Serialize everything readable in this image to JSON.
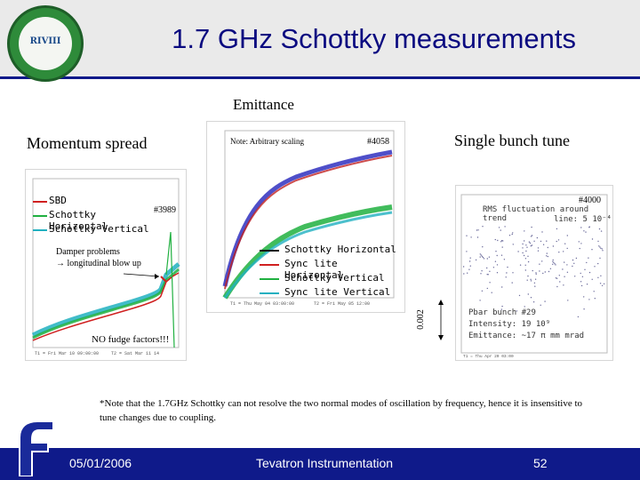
{
  "slide": {
    "title": "1.7 GHz Schottky measurements",
    "logo_text": "RIVIII"
  },
  "labels": {
    "emittance": "Emittance",
    "momentum_spread": "Momentum spread",
    "single_bunch_tune": "Single bunch tune",
    "note_arbitrary": "Note: Arbitrary scaling",
    "store_4058": "#4058",
    "store_3989": "#3989",
    "store_4000": "#4000",
    "rms_line1": "RMS fluctuation around trend",
    "rms_line2": "line: 5 10⁻⁴",
    "damper_line1": "Damper problems",
    "damper_line2": "→ longitudinal blow up",
    "no_fudge": "NO fudge factors!!!",
    "scale_bar": "0.002",
    "pbar_line1": "Pbar bunch #29",
    "pbar_line2": "Intensity: 19 10⁹",
    "pbar_line3": "Emittance: ~17 π mm mrad"
  },
  "legend_left": [
    {
      "name": "SBD",
      "color": "#d02020"
    },
    {
      "name": "Schottky Horizontal",
      "color": "#20b040"
    },
    {
      "name": "Schottky Vertical",
      "color": "#20b0c0"
    }
  ],
  "legend_mid": [
    {
      "name": "Schottky Horizontal",
      "color": "#101010"
    },
    {
      "name": "Sync lite Horizontal",
      "color": "#d02020"
    },
    {
      "name": "Schottky Vertical",
      "color": "#20b040"
    },
    {
      "name": "Sync lite Vertical",
      "color": "#20b0c0"
    }
  ],
  "note": "*Note that the 1.7GHz Schottky can not resolve the two normal modes of oscillation by frequency, hence it is insensitive to tune changes due to coupling.",
  "footer": {
    "date": "05/01/2006",
    "title": "Tevatron Instrumentation",
    "page": "52"
  }
}
